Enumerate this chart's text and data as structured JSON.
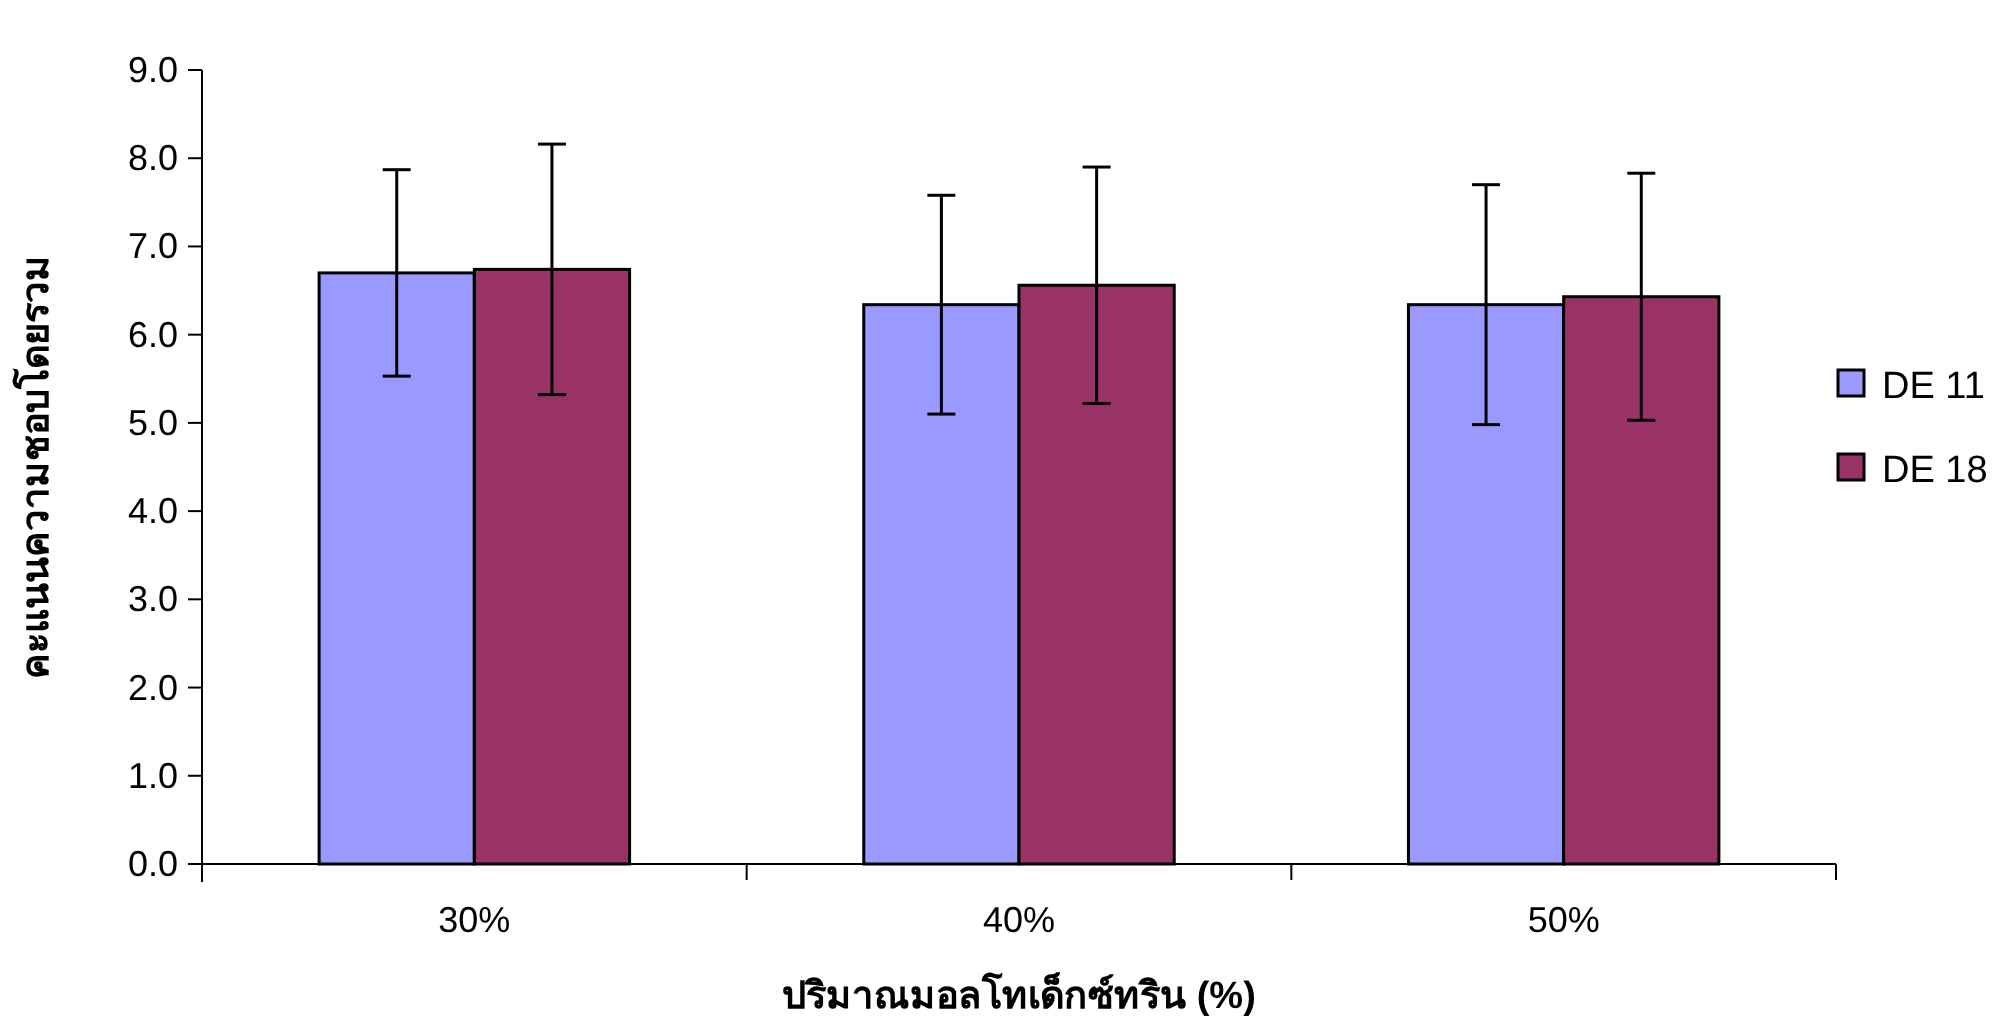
{
  "chart_data": {
    "type": "bar",
    "xlabel": "ปริมาณมอลโทเด็กซ์ทริน (%)",
    "ylabel": "คะแนนความชอบโดยรวม",
    "categories": [
      "30%",
      "40%",
      "50%"
    ],
    "series": [
      {
        "name": "DE 11",
        "color": "#9999ff",
        "values": [
          6.7,
          6.34,
          6.34
        ],
        "errors": [
          1.17,
          1.24,
          1.36
        ]
      },
      {
        "name": "DE 18",
        "color": "#993366",
        "values": [
          6.74,
          6.56,
          6.43
        ],
        "errors": [
          1.42,
          1.34,
          1.4
        ]
      }
    ],
    "ylim": [
      0,
      9
    ],
    "yticks": [
      {
        "value": 0,
        "label": "0.0"
      },
      {
        "value": 1,
        "label": "1.0"
      },
      {
        "value": 2,
        "label": "2.0"
      },
      {
        "value": 3,
        "label": "3.0"
      },
      {
        "value": 4,
        "label": "4.0"
      },
      {
        "value": 5,
        "label": "5.0"
      },
      {
        "value": 6,
        "label": "6.0"
      },
      {
        "value": 7,
        "label": "7.0"
      },
      {
        "value": 8,
        "label": "8.0"
      },
      {
        "value": 9,
        "label": "9.0"
      }
    ],
    "grid": false,
    "legend": "right"
  }
}
